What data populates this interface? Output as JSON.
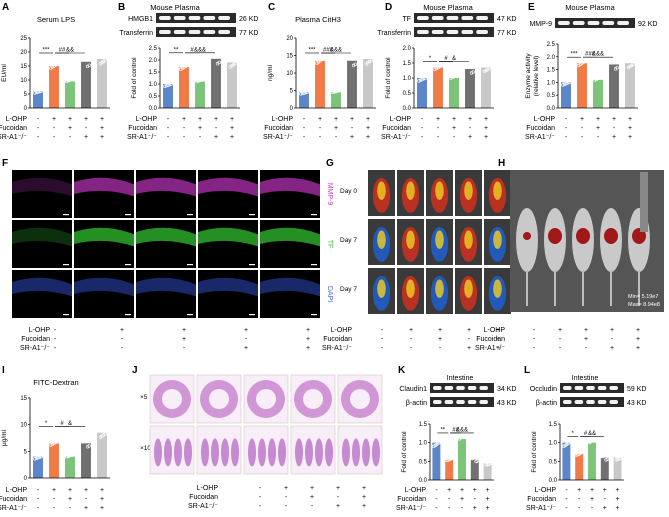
{
  "colors": {
    "saline": "#5b86c8",
    "lohp": "#f07a48",
    "fuc": "#7cc47a",
    "sr": "#707070",
    "srfuc": "#c8c8c8",
    "blot_bg": "#2a2a2a",
    "band": "#f2f2f2"
  },
  "group_rows": {
    "labels": [
      "L-OHP",
      "Fucoidan",
      "SR-A1⁻/⁻"
    ],
    "signs": [
      [
        "-",
        "+",
        "+",
        "+",
        "+"
      ],
      [
        "-",
        "-",
        "+",
        "-",
        "+"
      ],
      [
        "-",
        "-",
        "-",
        "+",
        "+"
      ]
    ]
  },
  "chart_data": [
    {
      "id": "A",
      "type": "bar",
      "letter": "A",
      "title": "Serum LPS",
      "ylabel": "EU/ml",
      "ylim": [
        0,
        25
      ],
      "yticks": [
        "0",
        "5",
        "10",
        "15",
        "20",
        "25"
      ],
      "values": [
        6,
        15,
        9.5,
        16.5,
        17.5
      ],
      "sig": [
        "***",
        "##",
        "&&"
      ]
    },
    {
      "id": "B",
      "type": "bar",
      "letter": "B",
      "title": "Mouse Plasma",
      "ylabel": "Fold of control",
      "ylim": [
        0,
        2.5
      ],
      "yticks": [
        "0.0",
        "0.5",
        "1.0",
        "1.5",
        "2.0",
        "2.5"
      ],
      "values": [
        1.0,
        1.7,
        1.1,
        2.05,
        1.9
      ],
      "sig": [
        "**",
        "#",
        "&&&"
      ],
      "blots": [
        {
          "name": "HMGB1",
          "kd": "26 KD"
        },
        {
          "name": "Transferrin",
          "kd": "77 KD"
        }
      ]
    },
    {
      "id": "C",
      "type": "bar",
      "letter": "C",
      "title": "Plasma CitH3",
      "ylabel": "ng/ml",
      "ylim": [
        0,
        20
      ],
      "yticks": [
        "0",
        "5",
        "10",
        "15",
        "20"
      ],
      "values": [
        4.5,
        13.5,
        4.5,
        13.5,
        14
      ],
      "sig": [
        "***",
        "###",
        "&&&"
      ]
    },
    {
      "id": "D",
      "type": "bar",
      "letter": "D",
      "title": "Mouse Plasma",
      "ylabel": "Fold of control",
      "ylim": [
        0,
        2.0
      ],
      "yticks": [
        "0.0",
        "0.5",
        "1.0",
        "1.5",
        "2.0"
      ],
      "values": [
        1.0,
        1.35,
        1.0,
        1.3,
        1.35
      ],
      "sig": [
        "*",
        "#",
        "&"
      ],
      "blots": [
        {
          "name": "TF",
          "kd": "47 KD"
        },
        {
          "name": "Transferrin",
          "kd": "77 KD"
        }
      ]
    },
    {
      "id": "E",
      "type": "bar",
      "letter": "E",
      "title": "Mouse Plasma",
      "ylabel": "Enzyme activity\n(relative level)",
      "ylim": [
        0,
        2.5
      ],
      "yticks": [
        "0.0",
        "0.5",
        "1.0",
        "1.5",
        "2.0",
        "2.5"
      ],
      "values": [
        1.0,
        1.75,
        1.1,
        1.7,
        1.75
      ],
      "sig": [
        "***",
        "###",
        "&&&"
      ],
      "blots": [
        {
          "name": "MMP-9",
          "kd": "92 KD"
        }
      ]
    },
    {
      "id": "I",
      "type": "bar",
      "letter": "I",
      "title": "FITC-Dextran",
      "ylabel": "μg/ml",
      "ylim": [
        0,
        15
      ],
      "yticks": [
        "0",
        "5",
        "10",
        "15"
      ],
      "values": [
        4,
        6.5,
        4,
        6.5,
        8.5
      ],
      "sig": [
        "*",
        "#",
        "&"
      ]
    },
    {
      "id": "K",
      "type": "bar",
      "letter": "K",
      "title": "Intestine",
      "ylabel": "Fold of control",
      "ylim": [
        0,
        1.5
      ],
      "yticks": [
        "0.0",
        "0.5",
        "1.0",
        "1.5"
      ],
      "values": [
        1.0,
        0.55,
        1.1,
        0.55,
        0.45
      ],
      "sig": [
        "**",
        "##",
        "&&&"
      ],
      "blots": [
        {
          "name": "Claudin1",
          "kd": "34 KD"
        },
        {
          "name": "β-actin",
          "kd": "43 KD"
        }
      ]
    },
    {
      "id": "L",
      "type": "bar",
      "letter": "L",
      "title": "Intestine",
      "ylabel": "Fold of control",
      "ylim": [
        0,
        1.5
      ],
      "yticks": [
        "0.0",
        "0.5",
        "1.0",
        "1.5"
      ],
      "values": [
        1.0,
        0.7,
        1.0,
        0.6,
        0.6
      ],
      "sig": [
        "*",
        "#",
        "&&"
      ],
      "blots": [
        {
          "name": "Occludin",
          "kd": "59 KD"
        },
        {
          "name": "β-actin",
          "kd": "43 KD"
        }
      ]
    }
  ],
  "panel_F": {
    "letter": "F",
    "row_labels": [
      "MMP-9",
      "TF",
      "DAPI"
    ],
    "row_colors": [
      "#c040c0",
      "#40c040",
      "#4060e0"
    ]
  },
  "panel_G": {
    "letter": "G",
    "row_labels": [
      "Day 0",
      "Day 7",
      "Day 7"
    ]
  },
  "panel_H": {
    "letter": "H",
    "scale": [
      "Min= 5.19e7",
      "Max= 8.94e8"
    ]
  },
  "panel_J": {
    "letter": "J",
    "row_labels": [
      "×5",
      "×10"
    ]
  }
}
